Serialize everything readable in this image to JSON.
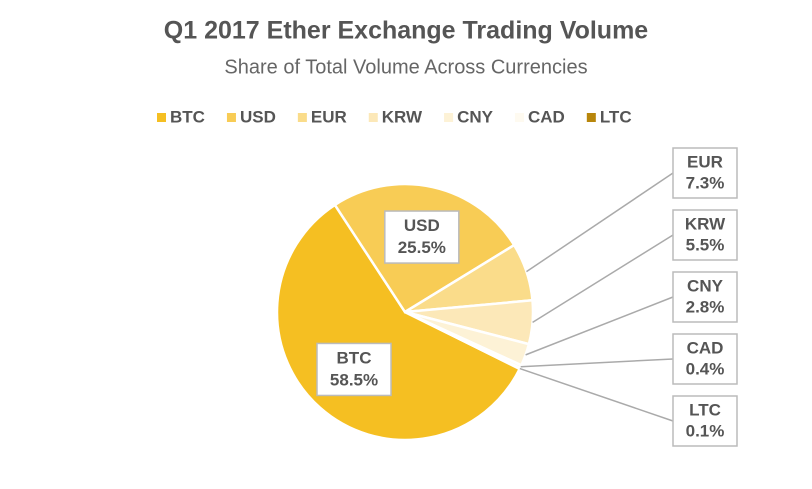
{
  "chart_data": {
    "type": "pie",
    "title": "Q1 2017 Ether Exchange Trading Volume",
    "subtitle": "Share of Total Volume Across Currencies",
    "categories": [
      "BTC",
      "USD",
      "EUR",
      "KRW",
      "CNY",
      "CAD",
      "LTC"
    ],
    "values": [
      58.5,
      25.5,
      7.3,
      5.5,
      2.8,
      0.4,
      0.1
    ],
    "value_labels": [
      "58.5%",
      "25.5%",
      "7.3%",
      "5.5%",
      "2.8%",
      "0.4%",
      "0.1%"
    ],
    "colors": [
      "#f5bf22",
      "#f8cc55",
      "#fadc8a",
      "#fce8b8",
      "#fdf2d6",
      "#fefaf0",
      "#b8860b"
    ],
    "legend": "top"
  }
}
